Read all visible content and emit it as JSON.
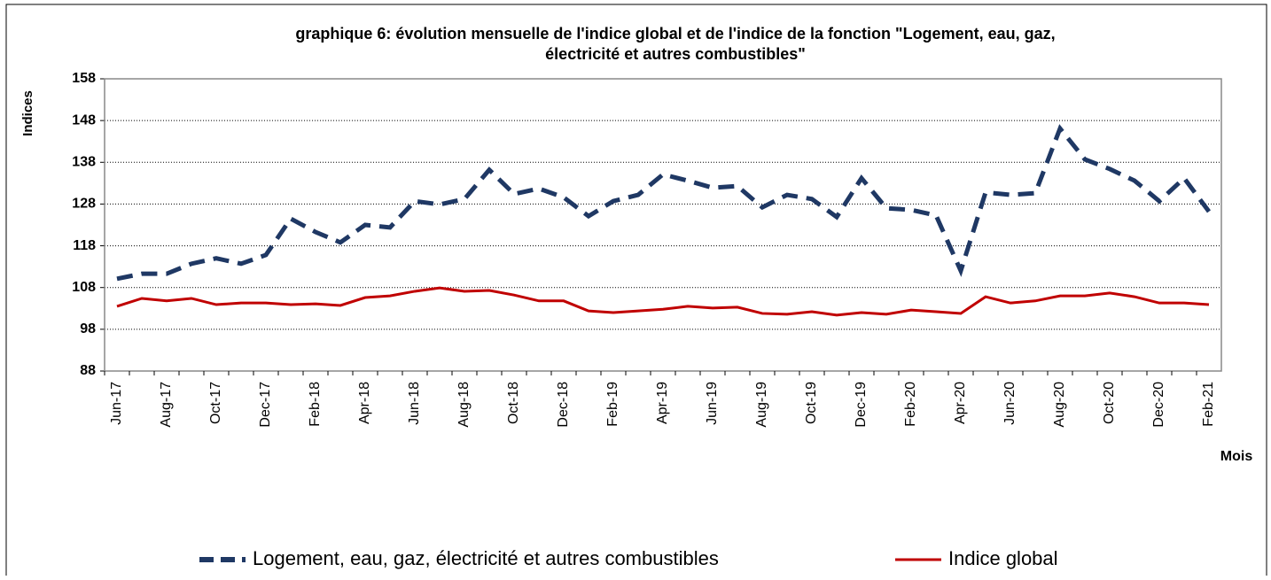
{
  "chart_data": {
    "type": "line",
    "title": [
      "graphique 6: évolution mensuelle de l'indice global et de l'indice de la fonction \"Logement, eau, gaz,",
      "électricité et autres combustibles\""
    ],
    "y_label": "Indices",
    "x_label": "Mois",
    "categories": [
      "Jun-17",
      null,
      "Aug-17",
      null,
      "Oct-17",
      null,
      "Dec-17",
      null,
      "Feb-18",
      null,
      "Apr-18",
      null,
      "Jun-18",
      null,
      "Aug-18",
      null,
      "Oct-18",
      null,
      "Dec-18",
      null,
      "Feb-19",
      null,
      "Apr-19",
      null,
      "Jun-19",
      null,
      "Aug-19",
      null,
      "Oct-19",
      null,
      "Dec-19",
      null,
      "Feb-20",
      null,
      "Apr-20",
      null,
      "Jun-20",
      null,
      "Aug-20",
      null,
      "Oct-20",
      null,
      "Dec-20",
      null,
      "Feb-21"
    ],
    "series": [
      {
        "name": "Logement, eau, gaz, électricité et autres combustibles",
        "color": "#1f3864",
        "dashed": true,
        "values": [
          110.1,
          111.3,
          111.3,
          113.7,
          115,
          113.7,
          115.8,
          124.5,
          121.3,
          118.8,
          123,
          122.4,
          128.7,
          127.9,
          129.2,
          136.2,
          130.4,
          131.7,
          129.6,
          125.1,
          128.7,
          130.2,
          135.1,
          133.6,
          131.9,
          132.3,
          127.2,
          130.2,
          129.2,
          124.9,
          134.2,
          127,
          126.6,
          125.3,
          112,
          130.8,
          130.2,
          130.6,
          146.1,
          138.7,
          136.4,
          133.6,
          128.7,
          134.2,
          126.2
        ]
      },
      {
        "name": "Indice global",
        "color": "#c00000",
        "dashed": false,
        "values": [
          103.5,
          105.4,
          104.8,
          105.4,
          103.9,
          104.3,
          104.3,
          103.9,
          104.1,
          103.7,
          105.6,
          106,
          107.1,
          107.9,
          107.1,
          107.3,
          106.2,
          104.8,
          104.8,
          102.4,
          102,
          102.4,
          102.8,
          103.5,
          103.1,
          103.3,
          101.8,
          101.6,
          102.2,
          101.4,
          102,
          101.6,
          102.6,
          102.2,
          101.8,
          105.8,
          104.3,
          104.8,
          106,
          106,
          106.7,
          105.8,
          104.3,
          104.3,
          103.9
        ]
      }
    ],
    "ylim": [
      88,
      158
    ],
    "yticks": [
      88,
      98,
      108,
      118,
      128,
      138,
      148,
      158
    ],
    "grid": true,
    "legend": "bottom"
  }
}
